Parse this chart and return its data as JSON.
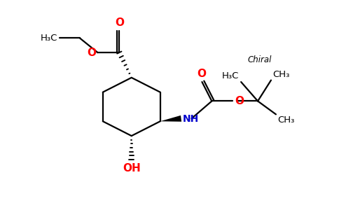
{
  "background": "#ffffff",
  "bond_color": "#000000",
  "o_color": "#ff0000",
  "n_color": "#0000cd",
  "text_color": "#000000",
  "line_width": 1.6,
  "figsize": [
    4.84,
    3.0
  ],
  "dpi": 100,
  "chiral_label": "Chiral",
  "oh_label": "OH",
  "nh_label": "NH",
  "o_label": "O",
  "h3c_left": "H₃C",
  "h3c_top": "H₃C",
  "ch3_top": "CH₃",
  "ch3_right": "CH₃"
}
